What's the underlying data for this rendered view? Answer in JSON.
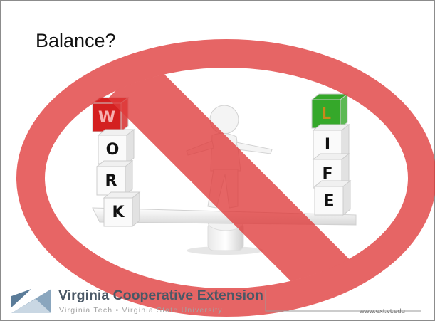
{
  "slide": {
    "title": "Balance?",
    "work_blocks": [
      "W",
      "O",
      "R",
      "K"
    ],
    "life_blocks": [
      "L",
      "I",
      "F",
      "E"
    ],
    "footer": {
      "org": "Virginia Cooperative Extension",
      "partners": "Virginia Tech • Virginia State University",
      "url": "www.ext.vt.edu"
    }
  }
}
